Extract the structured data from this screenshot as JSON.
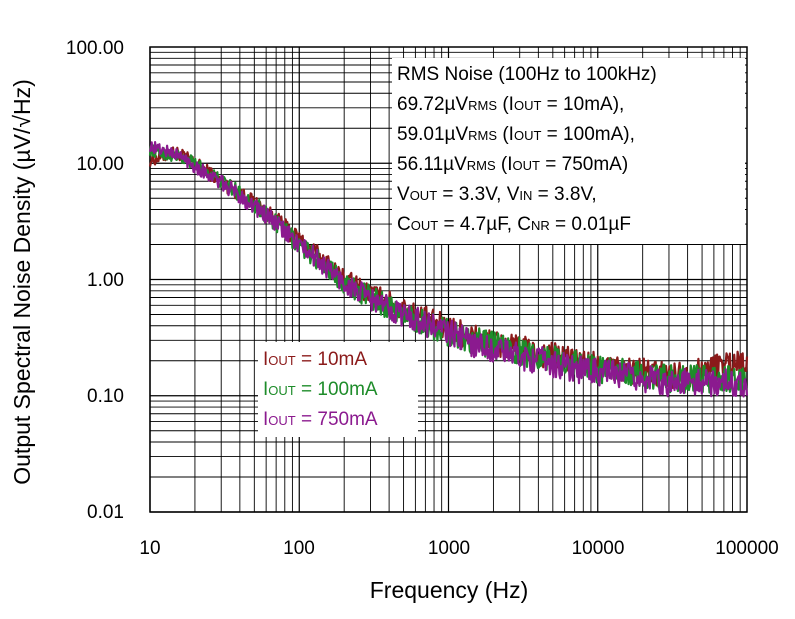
{
  "chart_data": {
    "type": "line",
    "title": "",
    "xlabel": "Frequency (Hz)",
    "ylabel": "Output Spectral Noise Density (µV/√Hz)",
    "xscale": "log",
    "yscale": "log",
    "xlim": [
      10,
      100000
    ],
    "ylim": [
      0.01,
      100
    ],
    "grid": true,
    "x_ticks": [
      {
        "value": 10,
        "label": "10"
      },
      {
        "value": 100,
        "label": "100"
      },
      {
        "value": 1000,
        "label": "1000"
      },
      {
        "value": 10000,
        "label": "10000"
      },
      {
        "value": 100000,
        "label": "100000"
      }
    ],
    "y_ticks": [
      {
        "value": 100,
        "label": "100.00"
      },
      {
        "value": 10,
        "label": "10.00"
      },
      {
        "value": 1,
        "label": "1.00"
      },
      {
        "value": 0.1,
        "label": "0.10"
      },
      {
        "value": 0.01,
        "label": "0.01"
      }
    ],
    "annotation": {
      "line1": "RMS Noise (100Hz to 100kHz)",
      "line2": {
        "val": "69.72µV",
        "sub": "RMS",
        "mid": " (I",
        "sub2": "OUT",
        "end": " = 10mA),"
      },
      "line3": {
        "val": "59.01µV",
        "sub": "RMS",
        "mid": " (I",
        "sub2": "OUT",
        "end": " = 100mA),"
      },
      "line4": {
        "val": "56.11µV",
        "sub": "RMS",
        "mid": " (I",
        "sub2": "OUT",
        "end": " = 750mA)"
      },
      "line5": {
        "a": "V",
        "a_sub": "OUT",
        "b": " = 3.3V, V",
        "b_sub": "IN",
        "c": " = 3.8V,"
      },
      "line6": {
        "a": "C",
        "a_sub": "OUT",
        "b": " = 4.7µF, C",
        "b_sub": "NR",
        "c": " = 0.01µF"
      }
    },
    "series": [
      {
        "name": "IOUT = 10mA",
        "legend_main": "I",
        "legend_sub": "OUT",
        "legend_value": " = 10mA",
        "color": "#8B1A1A",
        "x": [
          10,
          15,
          20,
          30,
          50,
          70,
          100,
          150,
          200,
          300,
          500,
          700,
          1000,
          1500,
          2000,
          3000,
          5000,
          7000,
          10000,
          20000,
          30000,
          50000,
          70000,
          100000
        ],
        "y": [
          10.5,
          12.5,
          10.0,
          7.0,
          4.5,
          3.2,
          2.2,
          1.4,
          1.0,
          0.75,
          0.55,
          0.45,
          0.38,
          0.32,
          0.28,
          0.25,
          0.22,
          0.2,
          0.18,
          0.16,
          0.15,
          0.16,
          0.19,
          0.2
        ]
      },
      {
        "name": "IOUT = 100mA",
        "legend_main": "I",
        "legend_sub": "OUT",
        "legend_value": " = 100mA",
        "color": "#1E8C2A",
        "x": [
          10,
          15,
          20,
          30,
          50,
          70,
          100,
          150,
          200,
          300,
          500,
          700,
          1000,
          1500,
          2000,
          3000,
          5000,
          7000,
          10000,
          20000,
          30000,
          50000,
          70000,
          100000
        ],
        "y": [
          13.0,
          11.5,
          10.0,
          7.0,
          4.5,
          3.0,
          2.0,
          1.3,
          0.95,
          0.7,
          0.5,
          0.42,
          0.35,
          0.3,
          0.27,
          0.24,
          0.21,
          0.19,
          0.17,
          0.15,
          0.14,
          0.14,
          0.14,
          0.13
        ]
      },
      {
        "name": "IOUT = 750mA",
        "legend_main": "I",
        "legend_sub": "OUT",
        "legend_value": " = 750mA",
        "color": "#8B1A8F",
        "x": [
          10,
          15,
          20,
          30,
          50,
          70,
          100,
          150,
          200,
          300,
          500,
          700,
          1000,
          1500,
          2000,
          3000,
          5000,
          7000,
          10000,
          20000,
          30000,
          50000,
          70000,
          100000
        ],
        "y": [
          14.0,
          12.0,
          9.5,
          6.8,
          4.3,
          3.0,
          2.0,
          1.3,
          0.92,
          0.68,
          0.5,
          0.42,
          0.35,
          0.28,
          0.25,
          0.22,
          0.19,
          0.17,
          0.16,
          0.14,
          0.13,
          0.13,
          0.13,
          0.13
        ]
      }
    ]
  }
}
